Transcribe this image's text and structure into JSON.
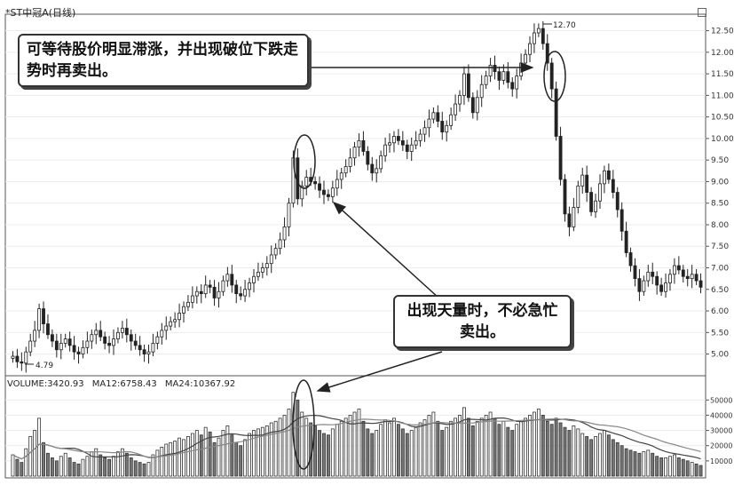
{
  "title": "*ST中冠A(日线)",
  "annotations": {
    "top_note": "可等待股价明显滞涨，并出现破位下跌走势时再卖出。",
    "bottom_note": "出现天量时，不必急忙卖出。",
    "high_label": "12.70",
    "low_label": "4.79"
  },
  "volume_caption": {
    "volume": "VOLUME:3420.93",
    "ma12": "MA12:6758.43",
    "ma24": "MA24:10367.92"
  },
  "chart_data": {
    "type": "candlestick",
    "title": "*ST中冠A(日线)",
    "price_ticks": [
      "12.50",
      "12.00",
      "11.50",
      "11.00",
      "10.50",
      "10.00",
      "9.50",
      "9.00",
      "8.50",
      "8.00",
      "7.50",
      "7.00",
      "6.50",
      "6.00",
      "5.50",
      "5.00"
    ],
    "price_range": [
      4.6,
      12.8
    ],
    "volume_ticks": [
      "50000",
      "40000",
      "30000",
      "20000",
      "10000"
    ],
    "volume_range": [
      0,
      56000
    ],
    "closes": [
      4.95,
      4.82,
      4.79,
      5.05,
      5.3,
      5.55,
      6.05,
      5.7,
      5.45,
      5.3,
      5.1,
      5.25,
      5.35,
      5.2,
      5.05,
      5.0,
      5.15,
      5.3,
      5.45,
      5.55,
      5.4,
      5.25,
      5.2,
      5.35,
      5.5,
      5.6,
      5.45,
      5.3,
      5.2,
      5.1,
      5.0,
      5.05,
      5.25,
      5.4,
      5.55,
      5.65,
      5.75,
      5.8,
      5.95,
      6.1,
      6.2,
      6.35,
      6.45,
      6.4,
      6.6,
      6.55,
      6.3,
      6.45,
      6.7,
      6.85,
      6.6,
      6.4,
      6.35,
      6.5,
      6.65,
      6.8,
      6.9,
      7.0,
      7.1,
      7.3,
      7.45,
      7.65,
      7.95,
      8.5,
      9.55,
      8.6,
      8.9,
      9.1,
      9.0,
      8.95,
      8.8,
      8.7,
      8.65,
      8.85,
      9.05,
      9.2,
      9.35,
      9.55,
      9.8,
      9.95,
      9.7,
      9.4,
      9.2,
      9.3,
      9.6,
      9.85,
      9.9,
      10.05,
      9.95,
      9.85,
      9.7,
      9.85,
      9.95,
      10.1,
      10.25,
      10.45,
      10.6,
      10.4,
      10.15,
      10.3,
      10.55,
      10.8,
      11.0,
      11.5,
      10.95,
      10.6,
      10.95,
      11.25,
      11.45,
      11.7,
      11.55,
      11.35,
      11.55,
      11.3,
      11.15,
      11.45,
      11.75,
      11.95,
      12.2,
      12.45,
      12.55,
      12.2,
      11.75,
      11.15,
      10.05,
      9.05,
      8.25,
      7.95,
      8.4,
      8.9,
      9.15,
      8.75,
      8.3,
      8.55,
      8.95,
      9.25,
      9.05,
      8.75,
      8.35,
      7.85,
      7.35,
      7.05,
      6.75,
      6.45,
      6.7,
      6.9,
      6.8,
      6.6,
      6.45,
      6.65,
      6.85,
      7.05,
      6.95,
      6.8,
      6.75,
      6.85,
      6.7,
      6.55
    ],
    "volumes": [
      14000,
      11000,
      9000,
      18000,
      26000,
      30000,
      38000,
      22000,
      15000,
      12000,
      10000,
      13000,
      15000,
      12000,
      9000,
      8000,
      11000,
      13000,
      16000,
      18000,
      14000,
      12000,
      11000,
      13000,
      16000,
      18000,
      15000,
      12000,
      10000,
      9000,
      8000,
      9000,
      14000,
      17000,
      19000,
      21000,
      22000,
      23000,
      25000,
      24000,
      26000,
      28000,
      30000,
      27000,
      32000,
      29000,
      22000,
      25000,
      30000,
      33000,
      27000,
      22000,
      20000,
      24000,
      28000,
      30000,
      31000,
      32000,
      33000,
      35000,
      36000,
      38000,
      40000,
      44000,
      55000,
      50000,
      42000,
      38000,
      35000,
      33000,
      30000,
      28000,
      27000,
      31000,
      34000,
      36000,
      38000,
      40000,
      42000,
      44000,
      36000,
      31000,
      28000,
      30000,
      34000,
      37000,
      35000,
      38000,
      34000,
      31000,
      28000,
      30000,
      32000,
      35000,
      37000,
      40000,
      42000,
      36000,
      30000,
      32000,
      36000,
      38000,
      40000,
      45000,
      38000,
      33000,
      36000,
      38000,
      40000,
      42000,
      38000,
      34000,
      36000,
      32000,
      30000,
      34000,
      36000,
      38000,
      40000,
      42000,
      44000,
      40000,
      36000,
      34000,
      38000,
      35000,
      32000,
      30000,
      33000,
      31000,
      28000,
      26000,
      24000,
      26000,
      28000,
      30000,
      27000,
      24000,
      22000,
      20000,
      18000,
      17000,
      16000,
      15000,
      16000,
      17000,
      15000,
      13000,
      12000,
      12000,
      13000,
      14000,
      12000,
      11000,
      10000,
      9000,
      8000,
      7000
    ],
    "ma_volume_series": [
      "MA12",
      "MA24"
    ]
  }
}
